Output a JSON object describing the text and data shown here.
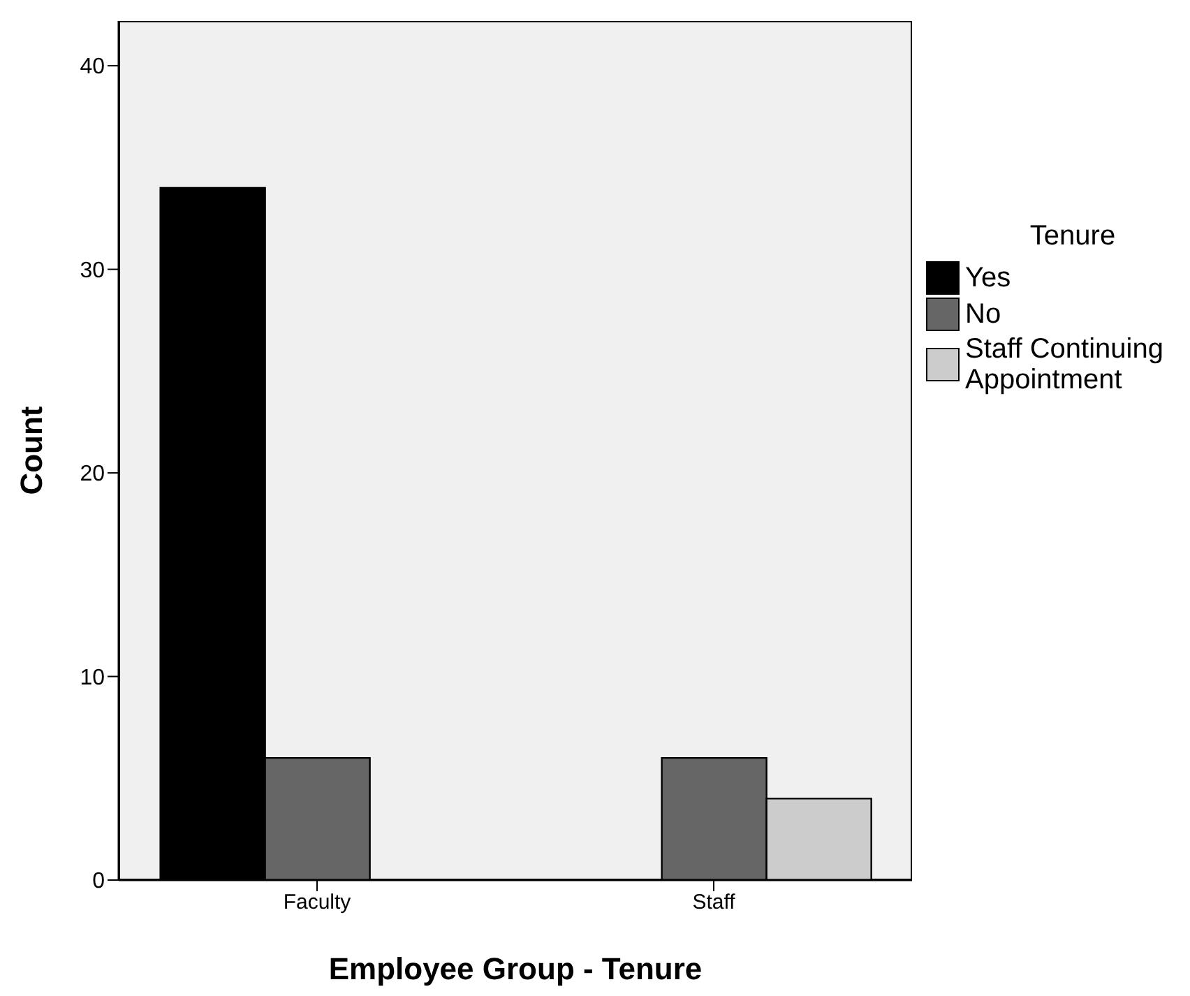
{
  "chart_data": {
    "type": "bar",
    "xlabel": "Employee Group - Tenure",
    "ylabel": "Count",
    "legend_title": "Tenure",
    "categories": [
      "Faculty",
      "Staff"
    ],
    "series": [
      {
        "name": "Yes",
        "color": "#000000",
        "values": [
          34,
          null
        ]
      },
      {
        "name": "No",
        "color": "#666666",
        "values": [
          6,
          6
        ]
      },
      {
        "name": "Staff Continuing Appointment",
        "color": "#cccccc",
        "values": [
          null,
          4
        ]
      }
    ],
    "ylim": [
      0,
      42.2
    ],
    "yticks": [
      0,
      10,
      20,
      30,
      40
    ],
    "grid": false,
    "legend": "right"
  }
}
